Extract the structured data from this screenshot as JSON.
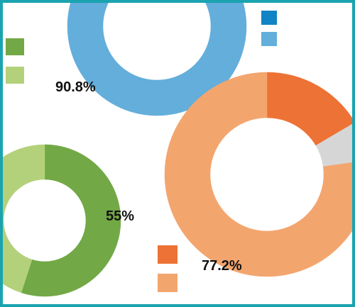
{
  "chart_data": [
    {
      "type": "pie",
      "style": "donut",
      "label": "90.8%",
      "slices": [
        {
          "value": 90.8,
          "color": "#63aedb"
        },
        {
          "value": 9.2,
          "color": "#63aedb"
        }
      ],
      "legend_colors": [
        "#1283c4",
        "#63aedb"
      ]
    },
    {
      "type": "pie",
      "style": "donut",
      "label": "55%",
      "slices": [
        {
          "value": 55,
          "color": "#72a846"
        },
        {
          "value": 45,
          "color": "#b3d17a"
        }
      ],
      "legend_colors": [
        "#72a846",
        "#b3d17a"
      ]
    },
    {
      "type": "pie",
      "style": "donut",
      "label": "77.2%",
      "slices": [
        {
          "value": 16.5,
          "color": "#ed7235"
        },
        {
          "value": 6.3,
          "color": "#d6d6d6"
        },
        {
          "value": 77.2,
          "color": "#f3a56e"
        }
      ],
      "legend_colors": [
        "#ed7235",
        "#f3a56e"
      ]
    }
  ],
  "colors": {
    "frame_border": "#1aa3b0",
    "background": "#ffffff"
  }
}
